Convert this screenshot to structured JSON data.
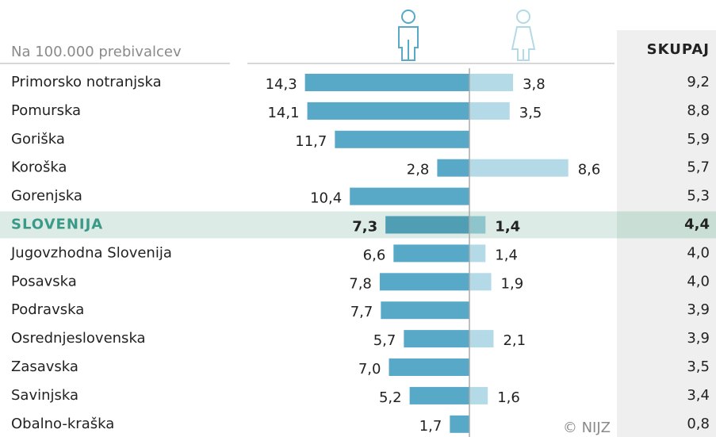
{
  "chart_data": {
    "type": "butterfly",
    "subtitle": "Na 100.000 prebivalcev",
    "total_label": "SKUPAJ",
    "source": "© NIJZ",
    "categories": [
      "Primorsko notranjska",
      "Pomurska",
      "Goriška",
      "Koroška",
      "Gorenjska",
      "SLOVENIJA",
      "Jugovzhodna Slovenija",
      "Posavska",
      "Podravska",
      "Osrednjeslovenska",
      "Zasavska",
      "Savinjska",
      "Obalno-kraška"
    ],
    "highlight_index": 5,
    "series": [
      {
        "color": "#58a8c7",
        "highlight_color": "#4f9eb4",
        "values": [
          14.3,
          14.1,
          11.7,
          2.8,
          10.4,
          7.3,
          6.6,
          7.8,
          7.7,
          5.7,
          7.0,
          5.2,
          1.7
        ],
        "value_labels": [
          "14,3",
          "14,1",
          "11,7",
          "2,8",
          "10,4",
          "7,3",
          "6,6",
          "7,8",
          "7,7",
          "5,7",
          "7,0",
          "5,2",
          "1,7"
        ]
      },
      {
        "color": "#b3dae6",
        "highlight_color": "#8ec5cd",
        "values": [
          3.8,
          3.5,
          null,
          8.6,
          null,
          1.4,
          1.4,
          1.9,
          null,
          2.1,
          null,
          1.6,
          null
        ],
        "value_labels": [
          "3,8",
          "3,5",
          null,
          "8,6",
          null,
          "1,4",
          "1,4",
          "1,9",
          null,
          "2,1",
          null,
          "1,6",
          null
        ]
      }
    ],
    "totals": [
      9.2,
      8.8,
      5.9,
      5.7,
      5.3,
      4.4,
      4.0,
      4.0,
      3.9,
      3.9,
      3.5,
      3.4,
      0.8
    ],
    "total_labels": [
      "9,2",
      "8,8",
      "5,9",
      "5,7",
      "5,3",
      "4,4",
      "4,0",
      "4,0",
      "3,9",
      "3,9",
      "3,5",
      "3,4",
      "0,8"
    ]
  }
}
